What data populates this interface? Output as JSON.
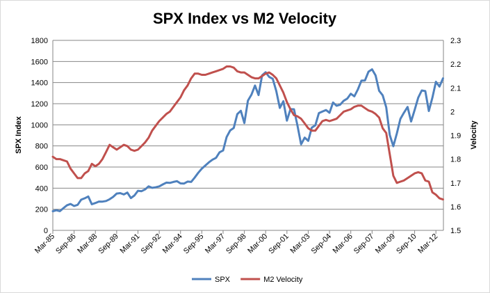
{
  "chart_data": {
    "type": "line",
    "title": "SPX Index vs M2 Velocity",
    "xlabel": "",
    "ylabel": "SPX Index",
    "y2label": "Velocity",
    "ylim": [
      0,
      1800
    ],
    "yticks": [
      0,
      200,
      400,
      600,
      800,
      1000,
      1200,
      1400,
      1600,
      1800
    ],
    "y2lim": [
      1.5,
      2.3
    ],
    "y2ticks": [
      "1.5",
      "1.6",
      "1.7",
      "1.8",
      "1.9",
      "2",
      "2.1",
      "2.2",
      "2.3"
    ],
    "xlim": [
      1985.17,
      2012.7
    ],
    "x_tick_labels": [
      {
        "label": "Mar-85",
        "x": 1985.17
      },
      {
        "label": "Sep-86",
        "x": 1986.67
      },
      {
        "label": "Mar-88",
        "x": 1988.17
      },
      {
        "label": "Sep-89",
        "x": 1989.67
      },
      {
        "label": "Mar-91",
        "x": 1991.17
      },
      {
        "label": "Sep-92",
        "x": 1992.67
      },
      {
        "label": "Mar-94",
        "x": 1994.17
      },
      {
        "label": "Sep-95",
        "x": 1995.67
      },
      {
        "label": "Mar-97",
        "x": 1997.17
      },
      {
        "label": "Sep-98",
        "x": 1998.67
      },
      {
        "label": "Mar-00",
        "x": 2000.17
      },
      {
        "label": "Sep-01",
        "x": 2001.67
      },
      {
        "label": "Mar-03",
        "x": 2003.17
      },
      {
        "label": "Sep-04",
        "x": 2004.67
      },
      {
        "label": "Mar-06",
        "x": 2006.17
      },
      {
        "label": "Sep-07",
        "x": 2007.67
      },
      {
        "label": "Mar-09",
        "x": 2009.17
      },
      {
        "label": "Sep-10",
        "x": 2010.67
      },
      {
        "label": "Mar-12",
        "x": 2012.17
      }
    ],
    "grid": true,
    "legend_position": "bottom",
    "series": [
      {
        "name": "SPX",
        "axis": "left",
        "color": "#4f81bd",
        "points": [
          [
            1985.17,
            181
          ],
          [
            1985.42,
            191
          ],
          [
            1985.67,
            182
          ],
          [
            1985.92,
            211
          ],
          [
            1986.17,
            238
          ],
          [
            1986.42,
            250
          ],
          [
            1986.67,
            231
          ],
          [
            1986.92,
            242
          ],
          [
            1987.17,
            291
          ],
          [
            1987.42,
            304
          ],
          [
            1987.67,
            321
          ],
          [
            1987.92,
            247
          ],
          [
            1988.17,
            259
          ],
          [
            1988.42,
            273
          ],
          [
            1988.67,
            272
          ],
          [
            1988.92,
            278
          ],
          [
            1989.17,
            295
          ],
          [
            1989.42,
            317
          ],
          [
            1989.67,
            349
          ],
          [
            1989.92,
            353
          ],
          [
            1990.17,
            340
          ],
          [
            1990.42,
            358
          ],
          [
            1990.67,
            306
          ],
          [
            1990.92,
            330
          ],
          [
            1991.17,
            375
          ],
          [
            1991.42,
            371
          ],
          [
            1991.67,
            388
          ],
          [
            1991.92,
            417
          ],
          [
            1992.17,
            403
          ],
          [
            1992.42,
            408
          ],
          [
            1992.67,
            417
          ],
          [
            1992.92,
            435
          ],
          [
            1993.17,
            452
          ],
          [
            1993.42,
            450
          ],
          [
            1993.67,
            459
          ],
          [
            1993.92,
            466
          ],
          [
            1994.17,
            445
          ],
          [
            1994.42,
            444
          ],
          [
            1994.67,
            462
          ],
          [
            1994.92,
            459
          ],
          [
            1995.17,
            500
          ],
          [
            1995.42,
            545
          ],
          [
            1995.67,
            584
          ],
          [
            1995.92,
            615
          ],
          [
            1996.17,
            645
          ],
          [
            1996.42,
            670
          ],
          [
            1996.67,
            687
          ],
          [
            1996.92,
            740
          ],
          [
            1997.17,
            757
          ],
          [
            1997.42,
            885
          ],
          [
            1997.67,
            947
          ],
          [
            1997.92,
            970
          ],
          [
            1998.17,
            1101
          ],
          [
            1998.42,
            1133
          ],
          [
            1998.67,
            1017
          ],
          [
            1998.92,
            1229
          ],
          [
            1999.17,
            1286
          ],
          [
            1999.42,
            1372
          ],
          [
            1999.67,
            1282
          ],
          [
            1999.92,
            1469
          ],
          [
            2000.17,
            1498
          ],
          [
            2000.42,
            1454
          ],
          [
            2000.67,
            1436
          ],
          [
            2000.92,
            1320
          ],
          [
            2001.17,
            1160
          ],
          [
            2001.42,
            1224
          ],
          [
            2001.67,
            1040
          ],
          [
            2001.92,
            1148
          ],
          [
            2002.17,
            1147
          ],
          [
            2002.42,
            989
          ],
          [
            2002.67,
            815
          ],
          [
            2002.92,
            879
          ],
          [
            2003.17,
            848
          ],
          [
            2003.42,
            974
          ],
          [
            2003.67,
            995
          ],
          [
            2003.92,
            1111
          ],
          [
            2004.17,
            1126
          ],
          [
            2004.42,
            1140
          ],
          [
            2004.67,
            1114
          ],
          [
            2004.92,
            1211
          ],
          [
            2005.17,
            1180
          ],
          [
            2005.42,
            1191
          ],
          [
            2005.67,
            1228
          ],
          [
            2005.92,
            1248
          ],
          [
            2006.17,
            1294
          ],
          [
            2006.42,
            1270
          ],
          [
            2006.67,
            1335
          ],
          [
            2006.92,
            1418
          ],
          [
            2007.17,
            1420
          ],
          [
            2007.42,
            1503
          ],
          [
            2007.67,
            1526
          ],
          [
            2007.92,
            1468
          ],
          [
            2008.17,
            1322
          ],
          [
            2008.42,
            1280
          ],
          [
            2008.67,
            1166
          ],
          [
            2008.92,
            903
          ],
          [
            2009.17,
            797
          ],
          [
            2009.42,
            919
          ],
          [
            2009.67,
            1057
          ],
          [
            2009.92,
            1115
          ],
          [
            2010.17,
            1169
          ],
          [
            2010.42,
            1031
          ],
          [
            2010.67,
            1141
          ],
          [
            2010.92,
            1257
          ],
          [
            2011.17,
            1325
          ],
          [
            2011.42,
            1320
          ],
          [
            2011.67,
            1131
          ],
          [
            2011.92,
            1257
          ],
          [
            2012.17,
            1408
          ],
          [
            2012.42,
            1362
          ],
          [
            2012.67,
            1440
          ]
        ]
      },
      {
        "name": "M2 Velocity",
        "axis": "right",
        "color": "#c0504d",
        "points": [
          [
            1985.17,
            1.81
          ],
          [
            1985.42,
            1.8
          ],
          [
            1985.67,
            1.8
          ],
          [
            1985.92,
            1.795
          ],
          [
            1986.17,
            1.79
          ],
          [
            1986.42,
            1.76
          ],
          [
            1986.67,
            1.74
          ],
          [
            1986.92,
            1.72
          ],
          [
            1987.17,
            1.72
          ],
          [
            1987.42,
            1.74
          ],
          [
            1987.67,
            1.75
          ],
          [
            1987.92,
            1.78
          ],
          [
            1988.17,
            1.77
          ],
          [
            1988.42,
            1.78
          ],
          [
            1988.67,
            1.8
          ],
          [
            1988.92,
            1.83
          ],
          [
            1989.17,
            1.86
          ],
          [
            1989.42,
            1.85
          ],
          [
            1989.67,
            1.84
          ],
          [
            1989.92,
            1.85
          ],
          [
            1990.17,
            1.86
          ],
          [
            1990.42,
            1.855
          ],
          [
            1990.67,
            1.84
          ],
          [
            1990.92,
            1.835
          ],
          [
            1991.17,
            1.84
          ],
          [
            1991.42,
            1.855
          ],
          [
            1991.67,
            1.87
          ],
          [
            1991.92,
            1.89
          ],
          [
            1992.17,
            1.92
          ],
          [
            1992.42,
            1.94
          ],
          [
            1992.67,
            1.96
          ],
          [
            1992.92,
            1.975
          ],
          [
            1993.17,
            1.99
          ],
          [
            1993.42,
            2.0
          ],
          [
            1993.67,
            2.02
          ],
          [
            1993.92,
            2.04
          ],
          [
            1994.17,
            2.06
          ],
          [
            1994.42,
            2.09
          ],
          [
            1994.67,
            2.11
          ],
          [
            1994.92,
            2.14
          ],
          [
            1995.17,
            2.16
          ],
          [
            1995.42,
            2.16
          ],
          [
            1995.67,
            2.155
          ],
          [
            1995.92,
            2.155
          ],
          [
            1996.17,
            2.16
          ],
          [
            1996.42,
            2.165
          ],
          [
            1996.67,
            2.17
          ],
          [
            1996.92,
            2.175
          ],
          [
            1997.17,
            2.18
          ],
          [
            1997.42,
            2.19
          ],
          [
            1997.67,
            2.19
          ],
          [
            1997.92,
            2.185
          ],
          [
            1998.17,
            2.17
          ],
          [
            1998.42,
            2.165
          ],
          [
            1998.67,
            2.165
          ],
          [
            1998.92,
            2.155
          ],
          [
            1999.17,
            2.145
          ],
          [
            1999.42,
            2.14
          ],
          [
            1999.67,
            2.14
          ],
          [
            1999.92,
            2.15
          ],
          [
            2000.17,
            2.16
          ],
          [
            2000.42,
            2.165
          ],
          [
            2000.67,
            2.155
          ],
          [
            2000.92,
            2.14
          ],
          [
            2001.17,
            2.11
          ],
          [
            2001.42,
            2.08
          ],
          [
            2001.67,
            2.04
          ],
          [
            2001.92,
            2.01
          ],
          [
            2002.17,
            1.985
          ],
          [
            2002.42,
            1.98
          ],
          [
            2002.67,
            1.97
          ],
          [
            2002.92,
            1.95
          ],
          [
            2003.17,
            1.93
          ],
          [
            2003.42,
            1.92
          ],
          [
            2003.67,
            1.92
          ],
          [
            2003.92,
            1.94
          ],
          [
            2004.17,
            1.96
          ],
          [
            2004.42,
            1.965
          ],
          [
            2004.67,
            1.96
          ],
          [
            2004.92,
            1.965
          ],
          [
            2005.17,
            1.97
          ],
          [
            2005.42,
            1.985
          ],
          [
            2005.67,
            2.0
          ],
          [
            2005.92,
            2.005
          ],
          [
            2006.17,
            2.01
          ],
          [
            2006.42,
            2.02
          ],
          [
            2006.67,
            2.025
          ],
          [
            2006.92,
            2.025
          ],
          [
            2007.17,
            2.015
          ],
          [
            2007.42,
            2.005
          ],
          [
            2007.67,
            2.0
          ],
          [
            2007.92,
            1.99
          ],
          [
            2008.17,
            1.975
          ],
          [
            2008.42,
            1.93
          ],
          [
            2008.67,
            1.91
          ],
          [
            2008.92,
            1.82
          ],
          [
            2009.17,
            1.73
          ],
          [
            2009.42,
            1.7
          ],
          [
            2009.67,
            1.705
          ],
          [
            2009.92,
            1.71
          ],
          [
            2010.17,
            1.72
          ],
          [
            2010.42,
            1.73
          ],
          [
            2010.67,
            1.74
          ],
          [
            2010.92,
            1.745
          ],
          [
            2011.17,
            1.74
          ],
          [
            2011.42,
            1.71
          ],
          [
            2011.67,
            1.705
          ],
          [
            2011.92,
            1.66
          ],
          [
            2012.17,
            1.65
          ],
          [
            2012.42,
            1.635
          ],
          [
            2012.67,
            1.63
          ]
        ]
      }
    ]
  }
}
